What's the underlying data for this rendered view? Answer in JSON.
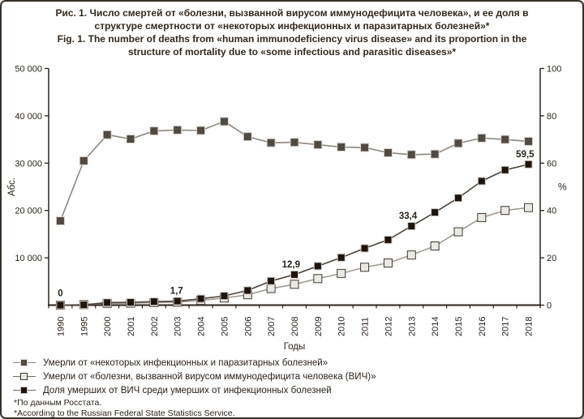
{
  "title": {
    "ru_line1": "Рис. 1. Число смертей от «болезни, вызванной вирусом иммунодефицита человека», и ее доля в",
    "ru_line2": "структуре смертности от «некоторых инфекционных и паразитарных болезней»*",
    "en_line1": "Fig. 1. The number of deaths from «human immunodeficiency virus disease» and its proportion in the",
    "en_line2": "structure of mortality due to «some infectious and parasitic diseases»*"
  },
  "chart_data": {
    "type": "line",
    "categories": [
      "1990",
      "1995",
      "2000",
      "2001",
      "2002",
      "2003",
      "2004",
      "2005",
      "2006",
      "2007",
      "2008",
      "2009",
      "2010",
      "2011",
      "2012",
      "2013",
      "2014",
      "2015",
      "2016",
      "2017",
      "2018"
    ],
    "xlabel": "Годы",
    "left_axis": {
      "label": "Абс.",
      "min": 0,
      "max": 50000,
      "ticks": [
        10000,
        20000,
        30000,
        40000,
        50000
      ],
      "tick_labels": [
        "10 000",
        "20 000",
        "30 000",
        "40 000",
        "50 000"
      ]
    },
    "right_axis": {
      "label": "%",
      "min": 0,
      "max": 100,
      "ticks": [
        0,
        20,
        40,
        60,
        80,
        100
      ],
      "tick_labels": [
        "0",
        "20",
        "40",
        "60",
        "80",
        "100"
      ]
    },
    "grid": false,
    "legend_position": "bottom-left",
    "series": [
      {
        "name": "Умерли от «некоторых инфекционных и паразитарных болезней»",
        "axis": "left",
        "values": [
          17800,
          30500,
          36000,
          35100,
          36800,
          37000,
          36900,
          38800,
          35600,
          34300,
          34400,
          33900,
          33400,
          33300,
          32200,
          31800,
          31900,
          34200,
          35300,
          35000,
          34600
        ],
        "line_color": "#8c8780",
        "marker_fill": "#514a43",
        "marker_stroke": "#d8d4cf",
        "marker_size": 10
      },
      {
        "name": "Умерли от «болезни, вызванной вирусом иммунодефицита человека (ВИЧ)»",
        "axis": "left",
        "values": [
          0,
          100,
          380,
          420,
          550,
          630,
          1000,
          1500,
          2200,
          3500,
          4400,
          5600,
          6700,
          8000,
          8900,
          10600,
          12500,
          15500,
          18500,
          20000,
          20600
        ],
        "line_color": "#a09b94",
        "marker_fill": "#ebe9e6",
        "marker_stroke": "#40382f",
        "marker_size": 10
      },
      {
        "name": "Доля умерших от ВИЧ среди умерших от инфекционных болезней",
        "axis": "right",
        "values": [
          0,
          0.1,
          1.1,
          1.2,
          1.5,
          1.7,
          2.7,
          3.9,
          6.2,
          10.2,
          12.9,
          16.5,
          20.1,
          24.0,
          27.6,
          33.4,
          39.2,
          45.3,
          52.4,
          57.1,
          59.5
        ],
        "line_color": "#4a423b",
        "marker_fill": "#1d140d",
        "marker_stroke": "#c9c5c0",
        "marker_size": 9,
        "labels": [
          {
            "i": 0,
            "text": "0"
          },
          {
            "i": 5,
            "text": "1,7"
          },
          {
            "i": 10,
            "text": "12,9"
          },
          {
            "i": 15,
            "text": "33,4"
          },
          {
            "i": 20,
            "text": "59,5"
          }
        ]
      }
    ]
  },
  "legend": {
    "items": [
      {
        "label": "Умерли от «некоторых инфекционных и паразитарных болезней»",
        "marker": "filled-gray-square"
      },
      {
        "label": "Умерли от «болезни, вызванной вирусом иммунодефицита человека (ВИЧ)»",
        "marker": "light-square"
      },
      {
        "label": "Доля умерших от ВИЧ среди умерших от инфекционных болезней",
        "marker": "filled-black-square"
      }
    ]
  },
  "footnotes": {
    "ru": "*По данным Росстата.",
    "en": "*According to the Russian Federal State Statistics Service."
  },
  "colors": {
    "background": "#ffffff",
    "border": "#37302a",
    "text": "#2b211b",
    "axis": "#2b221c",
    "series_infectious": "#514a43",
    "series_hiv": "#ebe9e6",
    "series_share": "#1d140d"
  }
}
